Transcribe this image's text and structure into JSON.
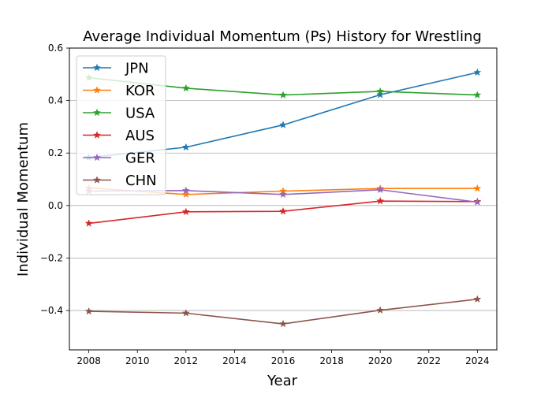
{
  "chart_data": {
    "type": "line",
    "title": "Average Individual Momentum (Ps) History for Wrestling",
    "xlabel": "Year",
    "ylabel": "Individual Momentum",
    "x": [
      2008,
      2012,
      2016,
      2020,
      2024
    ],
    "xlim": [
      2007.2,
      2024.8
    ],
    "ylim": [
      -0.55,
      0.6
    ],
    "x_ticks": [
      2008,
      2010,
      2012,
      2014,
      2016,
      2018,
      2020,
      2022,
      2024
    ],
    "y_ticks": [
      -0.4,
      -0.2,
      0.0,
      0.2,
      0.4,
      0.6
    ],
    "y_tick_labels": [
      "−0.4",
      "−0.2",
      "0.0",
      "0.2",
      "0.4",
      "0.6"
    ],
    "grid": "horizontal",
    "legend_position": "top-left",
    "marker": "star",
    "series": [
      {
        "name": "JPN",
        "color": "#1f77b4",
        "values": [
          0.183,
          0.222,
          0.307,
          0.422,
          0.507
        ]
      },
      {
        "name": "KOR",
        "color": "#ff7f0e",
        "values": [
          0.067,
          0.042,
          0.055,
          0.065,
          0.065
        ]
      },
      {
        "name": "USA",
        "color": "#2ca02c",
        "values": [
          0.487,
          0.447,
          0.421,
          0.435,
          0.421
        ]
      },
      {
        "name": "AUS",
        "color": "#d62728",
        "values": [
          -0.068,
          -0.024,
          -0.022,
          0.017,
          0.015
        ]
      },
      {
        "name": "GER",
        "color": "#9467bd",
        "values": [
          0.055,
          0.057,
          0.042,
          0.06,
          0.013
        ]
      },
      {
        "name": "CHN",
        "color": "#8c564b",
        "values": [
          -0.403,
          -0.41,
          -0.451,
          -0.399,
          -0.357
        ]
      }
    ]
  }
}
